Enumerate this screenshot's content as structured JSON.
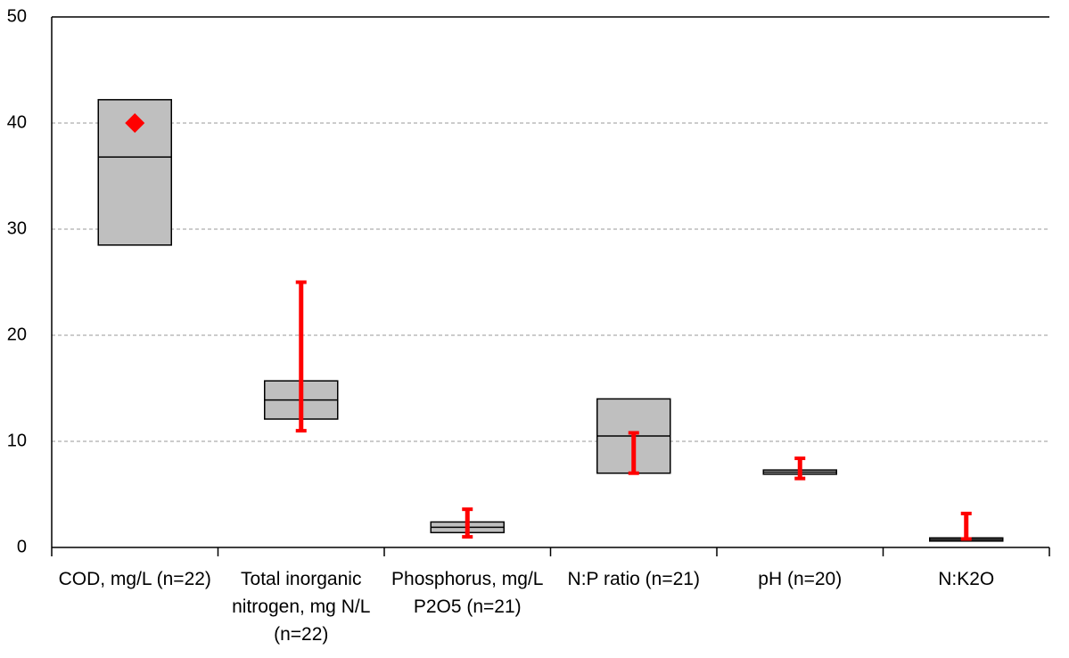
{
  "chart_data": {
    "type": "box",
    "categories": [
      "COD, mg/L (n=22)",
      "Total inorganic nitrogen, mg N/L (n=22)",
      "Phosphorus, mg/L P2O5 (n=21)",
      "N:P ratio (n=21)",
      "pH (n=20)",
      "N:K2O"
    ],
    "box": {
      "q1": [
        28.5,
        12.1,
        1.4,
        7.0,
        6.9,
        0.6
      ],
      "median": [
        36.8,
        13.9,
        1.9,
        10.5,
        7.1,
        0.75
      ],
      "q3": [
        42.2,
        15.7,
        2.4,
        14.0,
        7.3,
        0.9
      ],
      "color": "#bfbfbf"
    },
    "range": {
      "low": [
        null,
        11,
        1.0,
        7.0,
        6.5,
        0.8
      ],
      "high": [
        null,
        25,
        3.6,
        10.8,
        8.4,
        3.2
      ],
      "color": "#ff0000"
    },
    "marker": {
      "values": [
        40,
        null,
        null,
        null,
        null,
        null
      ],
      "color": "#ff0000"
    },
    "ylim": [
      0,
      50
    ],
    "yticks": [
      0,
      10,
      20,
      30,
      40,
      50
    ],
    "grid": true
  }
}
